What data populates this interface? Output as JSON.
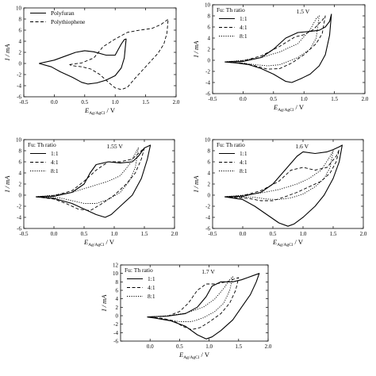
{
  "chart_data": [
    {
      "type": "line",
      "title": "",
      "annotation": "",
      "legend_title": "",
      "legend_position": "top-left",
      "xlabel": "E",
      "xlabel_sub": "Ag/AgCl",
      "xlabel_unit": " / V",
      "ylabel": "I / mA",
      "xlim": [
        -0.5,
        2.0
      ],
      "ylim": [
        -6,
        10
      ],
      "xticks": [
        -0.5,
        0.0,
        0.5,
        1.0,
        1.5,
        2.0
      ],
      "yticks": [
        -6,
        -4,
        -2,
        0,
        2,
        4,
        6,
        8,
        10
      ],
      "xtick_labels": [
        "-0.5",
        "0.0",
        "0.5",
        "1.0",
        "1.5",
        "2.0"
      ],
      "ytick_labels": [
        "-6",
        "-4",
        "-2",
        "0",
        "2",
        "4",
        "6",
        "8",
        "10"
      ],
      "series": [
        {
          "name": "Polyfuran",
          "style": "solid",
          "x": [
            -0.25,
            0.0,
            0.2,
            0.35,
            0.5,
            0.65,
            0.85,
            1.0,
            1.05,
            1.1,
            1.15,
            1.18,
            1.15,
            1.1,
            1.0,
            0.85,
            0.7,
            0.55,
            0.45,
            0.3,
            0.1,
            -0.05,
            -0.25
          ],
          "y": [
            0.0,
            0.6,
            1.4,
            2.0,
            2.3,
            2.1,
            1.5,
            1.5,
            2.5,
            3.5,
            4.3,
            4.4,
            1.0,
            -0.8,
            -2.2,
            -3.0,
            -3.5,
            -3.7,
            -3.4,
            -2.5,
            -1.5,
            -0.6,
            0.0
          ]
        },
        {
          "name": "Polythiophene",
          "style": "dashed",
          "x": [
            0.25,
            0.45,
            0.65,
            0.8,
            1.0,
            1.2,
            1.4,
            1.6,
            1.75,
            1.85,
            1.87,
            1.85,
            1.8,
            1.7,
            1.55,
            1.4,
            1.3,
            1.2,
            1.1,
            1.0,
            0.9,
            0.75,
            0.6,
            0.45,
            0.3,
            0.25
          ],
          "y": [
            -0.2,
            0.1,
            1.0,
            3.0,
            4.4,
            5.6,
            6.0,
            6.3,
            7.0,
            7.8,
            8.0,
            5.5,
            3.5,
            1.8,
            0.0,
            -1.8,
            -3.0,
            -4.3,
            -4.7,
            -4.4,
            -3.5,
            -2.0,
            -1.0,
            -0.6,
            -0.4,
            -0.2
          ]
        }
      ]
    },
    {
      "type": "line",
      "title": "",
      "annotation": "1.5 V",
      "legend_title": "Fu: Th ratio",
      "legend_position": "top-left",
      "xlabel": "E",
      "xlabel_sub": "Ag/AgCl",
      "xlabel_unit": " / V",
      "ylabel": "I / mA",
      "xlim": [
        -0.5,
        2.0
      ],
      "ylim": [
        -6,
        10
      ],
      "xticks": [
        -0.5,
        0.0,
        0.5,
        1.0,
        1.5,
        2.0
      ],
      "yticks": [
        -6,
        -4,
        -2,
        0,
        2,
        4,
        6,
        8,
        10
      ],
      "xtick_labels": [
        "-0.5",
        "0.0",
        "0.5",
        "1.0",
        "1.5",
        "2.0"
      ],
      "ytick_labels": [
        "-6",
        "-4",
        "-2",
        "0",
        "2",
        "4",
        "6",
        "8",
        "10"
      ],
      "series": [
        {
          "name": "1:1",
          "style": "solid",
          "x": [
            -0.3,
            0.0,
            0.3,
            0.5,
            0.7,
            0.9,
            1.1,
            1.25,
            1.35,
            1.42,
            1.45,
            1.42,
            1.35,
            1.25,
            1.1,
            0.95,
            0.8,
            0.7,
            0.5,
            0.3,
            0.1,
            -0.1,
            -0.3
          ],
          "y": [
            -0.3,
            -0.2,
            0.5,
            2.0,
            4.0,
            5.0,
            5.2,
            5.4,
            6.0,
            7.0,
            8.3,
            4.5,
            1.0,
            -1.0,
            -2.5,
            -3.3,
            -4.0,
            -3.8,
            -2.5,
            -1.5,
            -0.8,
            -0.5,
            -0.3
          ]
        },
        {
          "name": "4:1",
          "style": "dashed",
          "x": [
            -0.3,
            0.0,
            0.3,
            0.6,
            0.85,
            1.0,
            1.15,
            1.3,
            1.35,
            1.3,
            1.2,
            1.0,
            0.8,
            0.6,
            0.4,
            0.2,
            0.0,
            -0.3
          ],
          "y": [
            -0.3,
            -0.1,
            0.8,
            2.5,
            4.2,
            4.6,
            5.5,
            7.2,
            8.0,
            4.8,
            3.0,
            1.0,
            -0.5,
            -1.5,
            -1.6,
            -1.0,
            -0.5,
            -0.3
          ]
        },
        {
          "name": "8:1",
          "style": "dotted",
          "x": [
            -0.3,
            0.0,
            0.3,
            0.6,
            0.9,
            1.1,
            1.2,
            1.25,
            1.2,
            1.1,
            0.9,
            0.6,
            0.4,
            0.2,
            0.0,
            -0.3
          ],
          "y": [
            -0.3,
            0.0,
            0.5,
            1.5,
            3.0,
            5.5,
            7.5,
            8.0,
            4.0,
            2.0,
            0.5,
            -0.8,
            -1.0,
            -0.8,
            -0.5,
            -0.3
          ]
        }
      ]
    },
    {
      "type": "line",
      "title": "",
      "annotation": "1.55 V",
      "legend_title": "Fu: Th ratio",
      "legend_position": "top-left",
      "xlabel": "E",
      "xlabel_sub": "Ag/AgCl",
      "xlabel_unit": " / V",
      "ylabel": "I / mA",
      "xlim": [
        -0.5,
        2.0
      ],
      "ylim": [
        -6,
        10
      ],
      "xticks": [
        -0.5,
        0.0,
        0.5,
        1.0,
        1.5,
        2.0
      ],
      "yticks": [
        -6,
        -4,
        -2,
        0,
        2,
        4,
        6,
        8,
        10
      ],
      "xtick_labels": [
        "-0.5",
        "0.0",
        "0.5",
        "1.0",
        "1.5",
        "2.0"
      ],
      "ytick_labels": [
        "-6",
        "-4",
        "-2",
        "0",
        "2",
        "4",
        "6",
        "8",
        "10"
      ],
      "series": [
        {
          "name": "1:1",
          "style": "solid",
          "x": [
            -0.3,
            0.0,
            0.3,
            0.5,
            0.6,
            0.7,
            0.9,
            1.1,
            1.3,
            1.4,
            1.5,
            1.6,
            1.55,
            1.45,
            1.3,
            1.1,
            0.95,
            0.85,
            0.7,
            0.5,
            0.3,
            0.0,
            -0.3
          ],
          "y": [
            -0.3,
            -0.2,
            0.5,
            2.0,
            4.0,
            5.5,
            6.0,
            5.8,
            6.0,
            7.0,
            8.5,
            9.0,
            6.5,
            3.0,
            0.0,
            -2.0,
            -3.5,
            -4.0,
            -3.5,
            -2.5,
            -1.5,
            -0.6,
            -0.3
          ]
        },
        {
          "name": "4:1",
          "style": "dashed",
          "x": [
            -0.3,
            0.0,
            0.3,
            0.5,
            0.7,
            0.9,
            1.1,
            1.3,
            1.45,
            1.5,
            1.45,
            1.35,
            1.2,
            1.0,
            0.8,
            0.6,
            0.4,
            0.2,
            0.0,
            -0.3
          ],
          "y": [
            -0.3,
            -0.1,
            0.8,
            2.5,
            4.5,
            6.0,
            6.0,
            6.5,
            8.0,
            8.5,
            6.5,
            4.0,
            2.0,
            0.0,
            -1.5,
            -2.8,
            -2.5,
            -1.5,
            -0.7,
            -0.3
          ]
        },
        {
          "name": "8:1",
          "style": "dotted",
          "x": [
            -0.3,
            0.0,
            0.3,
            0.6,
            0.9,
            1.1,
            1.25,
            1.35,
            1.4,
            1.35,
            1.25,
            1.1,
            0.9,
            0.7,
            0.5,
            0.3,
            0.1,
            -0.3
          ],
          "y": [
            -0.3,
            0.0,
            0.5,
            1.5,
            2.5,
            3.5,
            5.5,
            7.5,
            8.5,
            5.0,
            2.5,
            0.5,
            -0.8,
            -1.5,
            -1.5,
            -1.0,
            -0.5,
            -0.3
          ]
        }
      ]
    },
    {
      "type": "line",
      "title": "",
      "annotation": "1.6 V",
      "legend_title": "Fu: Th ratio",
      "legend_position": "top-left",
      "xlabel": "E",
      "xlabel_sub": "Ag/AgCl",
      "xlabel_unit": " / V",
      "ylabel": "I / mA",
      "xlim": [
        -0.5,
        2.0
      ],
      "ylim": [
        -6,
        10
      ],
      "xticks": [
        -0.5,
        0.0,
        0.5,
        1.0,
        1.5,
        2.0
      ],
      "yticks": [
        -6,
        -4,
        -2,
        0,
        2,
        4,
        6,
        8,
        10
      ],
      "xtick_labels": [
        "-0.5",
        "0.0",
        "0.5",
        "1.0",
        "1.5",
        "2.0"
      ],
      "ytick_labels": [
        "-6",
        "-4",
        "-2",
        "0",
        "2",
        "4",
        "6",
        "8",
        "10"
      ],
      "series": [
        {
          "name": "1:1",
          "style": "solid",
          "x": [
            -0.3,
            0.0,
            0.3,
            0.5,
            0.7,
            0.9,
            1.0,
            1.2,
            1.4,
            1.5,
            1.6,
            1.65,
            1.6,
            1.5,
            1.35,
            1.2,
            1.0,
            0.85,
            0.75,
            0.6,
            0.4,
            0.2,
            0.0,
            -0.3
          ],
          "y": [
            -0.3,
            -0.2,
            0.5,
            2.0,
            4.5,
            7.0,
            7.8,
            7.5,
            7.8,
            8.2,
            8.7,
            9.0,
            6.0,
            3.0,
            0.0,
            -2.0,
            -4.0,
            -5.2,
            -5.6,
            -5.0,
            -3.5,
            -2.0,
            -0.8,
            -0.3
          ]
        },
        {
          "name": "4:1",
          "style": "dashed",
          "x": [
            -0.3,
            0.0,
            0.3,
            0.6,
            0.8,
            1.0,
            1.2,
            1.4,
            1.55,
            1.6,
            1.55,
            1.45,
            1.3,
            1.1,
            0.9,
            0.7,
            0.5,
            0.3,
            0.1,
            -0.3
          ],
          "y": [
            -0.3,
            -0.1,
            0.8,
            2.5,
            4.5,
            5.0,
            4.5,
            5.0,
            7.0,
            8.2,
            6.0,
            4.0,
            2.5,
            1.5,
            0.5,
            -0.3,
            -1.0,
            -1.0,
            -0.6,
            -0.3
          ]
        },
        {
          "name": "8:1",
          "style": "dotted",
          "x": [
            -0.3,
            0.0,
            0.3,
            0.6,
            0.9,
            1.1,
            1.3,
            1.45,
            1.5,
            1.45,
            1.35,
            1.2,
            1.0,
            0.8,
            0.6,
            0.4,
            0.2,
            -0.3
          ],
          "y": [
            -0.3,
            0.0,
            0.4,
            1.0,
            2.0,
            3.0,
            4.5,
            7.0,
            8.0,
            5.0,
            3.0,
            1.5,
            0.2,
            -0.5,
            -0.8,
            -0.7,
            -0.4,
            -0.3
          ]
        }
      ]
    },
    {
      "type": "line",
      "title": "",
      "annotation": "1.7 V",
      "legend_title": "Fu: Th ratio",
      "legend_position": "top-left",
      "xlabel": "E",
      "xlabel_sub": "Ag/AgCl",
      "xlabel_unit": " / V",
      "ylabel": "I / mA",
      "xlim": [
        -0.5,
        2.0
      ],
      "ylim": [
        -6,
        12
      ],
      "xticks": [
        0.0,
        0.5,
        1.0,
        1.5,
        2.0
      ],
      "yticks": [
        -6,
        -4,
        -2,
        0,
        2,
        4,
        6,
        8,
        10,
        12
      ],
      "xtick_labels": [
        "0.0",
        "0.5",
        "1.0",
        "1.5",
        "2.0"
      ],
      "ytick_labels": [
        "-6",
        "-4",
        "-2",
        "0",
        "2",
        "4",
        "6",
        "8",
        "10",
        "12"
      ],
      "series": [
        {
          "name": "1:1",
          "style": "solid",
          "x": [
            -0.05,
            0.3,
            0.6,
            0.8,
            0.95,
            1.05,
            1.2,
            1.4,
            1.55,
            1.65,
            1.75,
            1.85,
            1.8,
            1.7,
            1.55,
            1.4,
            1.2,
            1.05,
            0.95,
            0.8,
            0.6,
            0.35,
            0.1,
            -0.05
          ],
          "y": [
            -0.3,
            -0.1,
            0.5,
            2.0,
            4.5,
            7.0,
            8.0,
            8.0,
            8.5,
            9.0,
            9.5,
            10.0,
            8.0,
            5.0,
            2.0,
            -1.0,
            -3.5,
            -5.0,
            -5.5,
            -4.5,
            -2.5,
            -1.2,
            -0.6,
            -0.3
          ]
        },
        {
          "name": "4:1",
          "style": "dashed",
          "x": [
            -0.05,
            0.3,
            0.5,
            0.65,
            0.8,
            0.95,
            1.1,
            1.3,
            1.45,
            1.5,
            1.45,
            1.35,
            1.2,
            1.0,
            0.85,
            0.7,
            0.55,
            0.4,
            0.2,
            -0.05
          ],
          "y": [
            -0.3,
            -0.1,
            1.0,
            3.0,
            6.0,
            7.5,
            7.5,
            8.0,
            8.8,
            9.0,
            6.0,
            3.0,
            0.5,
            -1.5,
            -2.8,
            -3.3,
            -2.5,
            -1.2,
            -0.6,
            -0.3
          ]
        },
        {
          "name": "8:1",
          "style": "dotted",
          "x": [
            -0.05,
            0.3,
            0.6,
            0.9,
            1.1,
            1.25,
            1.35,
            1.4,
            1.35,
            1.25,
            1.1,
            0.9,
            0.7,
            0.5,
            0.3,
            0.1,
            -0.05
          ],
          "y": [
            -0.3,
            0.0,
            0.6,
            2.0,
            4.0,
            6.5,
            8.5,
            9.2,
            6.0,
            3.0,
            1.0,
            -0.5,
            -1.4,
            -1.4,
            -1.0,
            -0.5,
            -0.3
          ]
        }
      ]
    }
  ]
}
